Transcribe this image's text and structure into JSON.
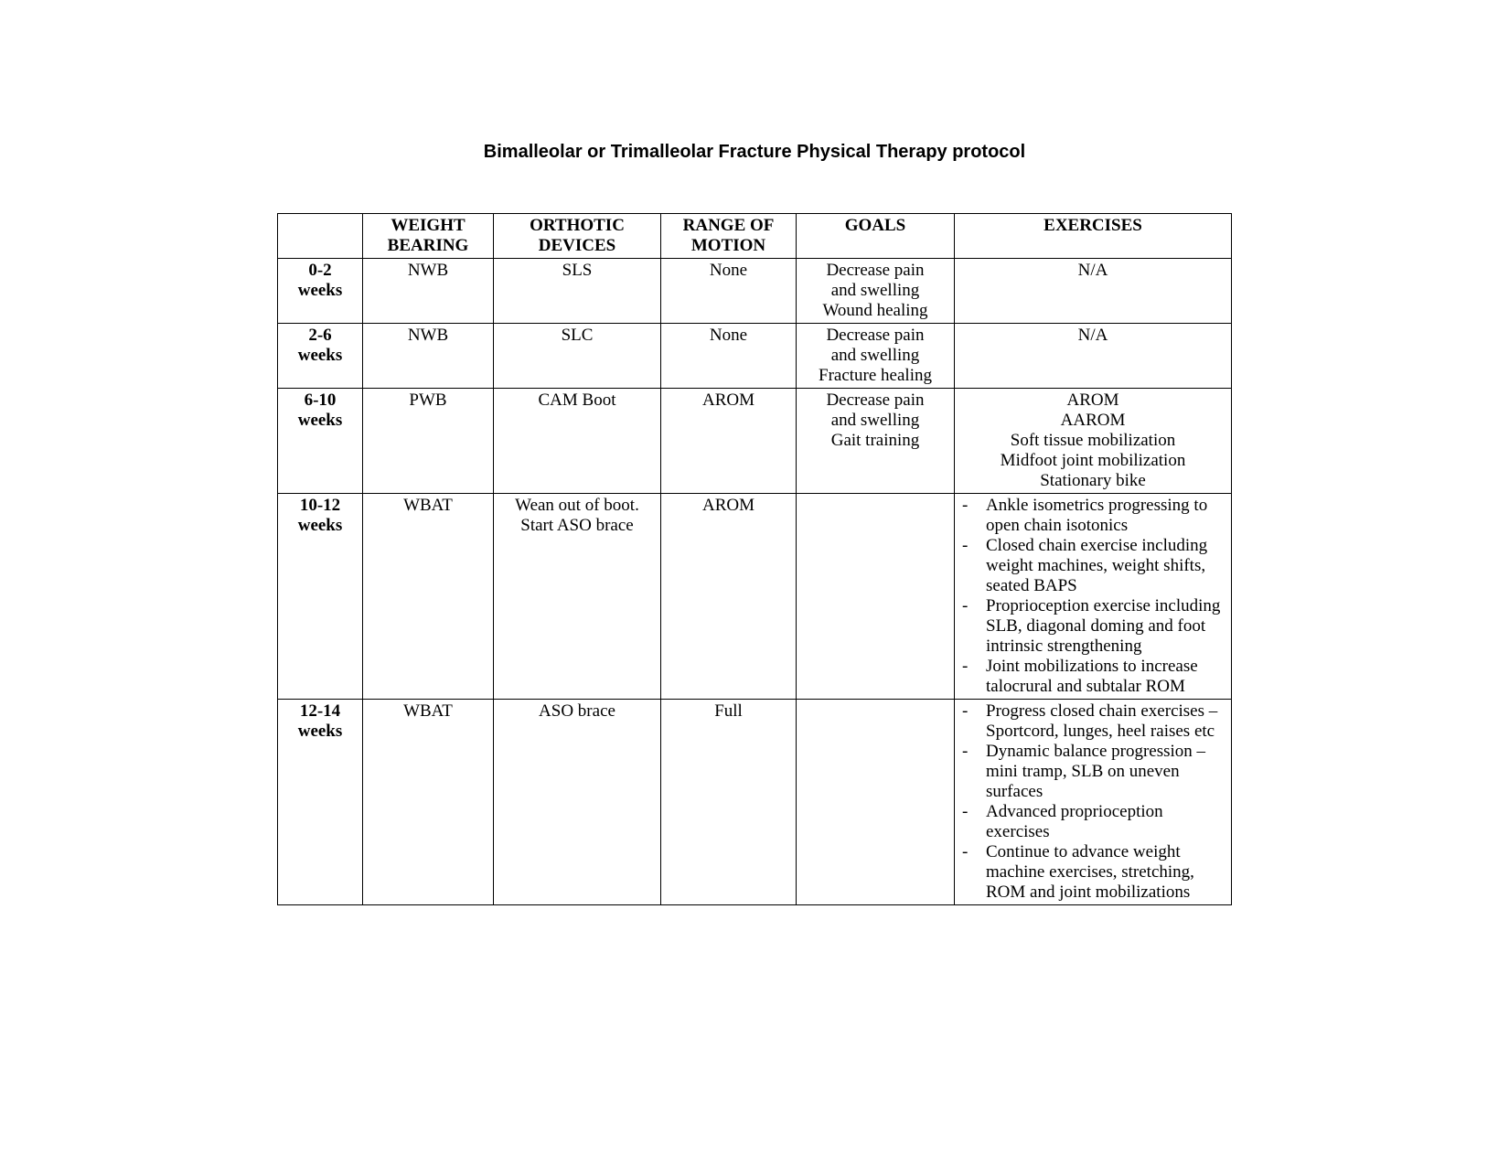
{
  "title": "Bimalleolar or Trimalleolar  Fracture Physical Therapy protocol",
  "headers": {
    "period": "",
    "wb_l1": "WEIGHT",
    "wb_l2": "BEARING",
    "orth_l1": "ORTHOTIC",
    "orth_l2": "DEVICES",
    "rom_l1": "RANGE OF",
    "rom_l2": "MOTION",
    "goals": "GOALS",
    "ex": "EXERCISES"
  },
  "rows": [
    {
      "period_l1": "0-2",
      "period_l2": "weeks",
      "wb": "NWB",
      "orth": "SLS",
      "rom": "None",
      "goals_lines": [
        "Decrease pain",
        "and swelling",
        "Wound healing"
      ],
      "ex_center_lines": [
        "N/A"
      ],
      "ex_bullets": []
    },
    {
      "period_l1": "2-6",
      "period_l2": "weeks",
      "wb": "NWB",
      "orth": "SLC",
      "rom": "None",
      "goals_lines": [
        "Decrease pain",
        "and swelling",
        "Fracture healing"
      ],
      "ex_center_lines": [
        "N/A"
      ],
      "ex_bullets": []
    },
    {
      "period_l1": "6-10",
      "period_l2": "weeks",
      "wb": "PWB",
      "orth": "CAM Boot",
      "rom": "AROM",
      "goals_lines": [
        "Decrease pain",
        "and swelling",
        "Gait training"
      ],
      "ex_center_lines": [
        "AROM",
        "AAROM",
        "Soft tissue mobilization",
        "Midfoot joint mobilization",
        "Stationary bike"
      ],
      "ex_bullets": []
    },
    {
      "period_l1": "10-12",
      "period_l2": "weeks",
      "wb": "WBAT",
      "orth": "Wean out of boot.\nStart ASO brace",
      "rom": "AROM",
      "goals_lines": [],
      "ex_center_lines": [],
      "ex_bullets": [
        "Ankle isometrics progressing to open chain isotonics",
        "Closed chain exercise including weight machines, weight shifts, seated BAPS",
        "Proprioception exercise including SLB, diagonal doming and foot intrinsic strengthening",
        "Joint mobilizations to increase talocrural and subtalar ROM"
      ]
    },
    {
      "period_l1": "12-14",
      "period_l2": "weeks",
      "wb": "WBAT",
      "orth": "ASO brace",
      "rom": "Full",
      "goals_lines": [],
      "ex_center_lines": [],
      "ex_bullets": [
        "Progress closed chain exercises – Sportcord, lunges, heel raises etc",
        "Dynamic balance progression – mini tramp, SLB on uneven surfaces",
        "Advanced proprioception exercises",
        "Continue to advance weight machine exercises, stretching, ROM and joint mobilizations"
      ]
    }
  ]
}
